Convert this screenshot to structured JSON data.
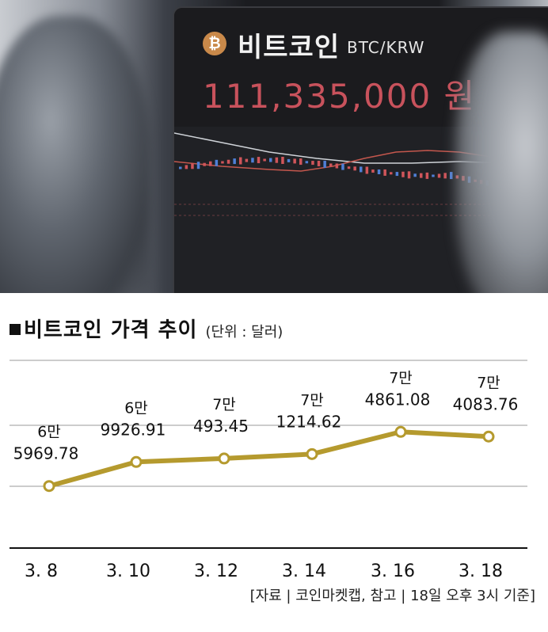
{
  "photo": {
    "coin_symbol": "₿",
    "coin_name": "비트코인",
    "pair": "BTC/KRW",
    "price": "111,335,000 원"
  },
  "chart_data": {
    "type": "line",
    "title": "비트코인 가격 추이",
    "unit_note": "(단위 : 달러)",
    "categories": [
      "3. 8",
      "3. 10",
      "3. 12",
      "3. 14",
      "3. 16",
      "3. 18"
    ],
    "values": [
      65969.78,
      69926.91,
      70493.45,
      71214.62,
      74861.08,
      74083.76
    ],
    "value_labels": [
      [
        "6만",
        "5969.78"
      ],
      [
        "6만",
        "9926.91"
      ],
      [
        "7만",
        "493.45"
      ],
      [
        "7만",
        "1214.62"
      ],
      [
        "7만",
        "4861.08"
      ],
      [
        "7만",
        "4083.76"
      ]
    ],
    "ylim": [
      61000,
      81000
    ],
    "grid": true,
    "line_color": "#b59a2e",
    "source": "[자료 | 코인마켓캡, 참고 | 18일 오후 3시 기준]"
  }
}
